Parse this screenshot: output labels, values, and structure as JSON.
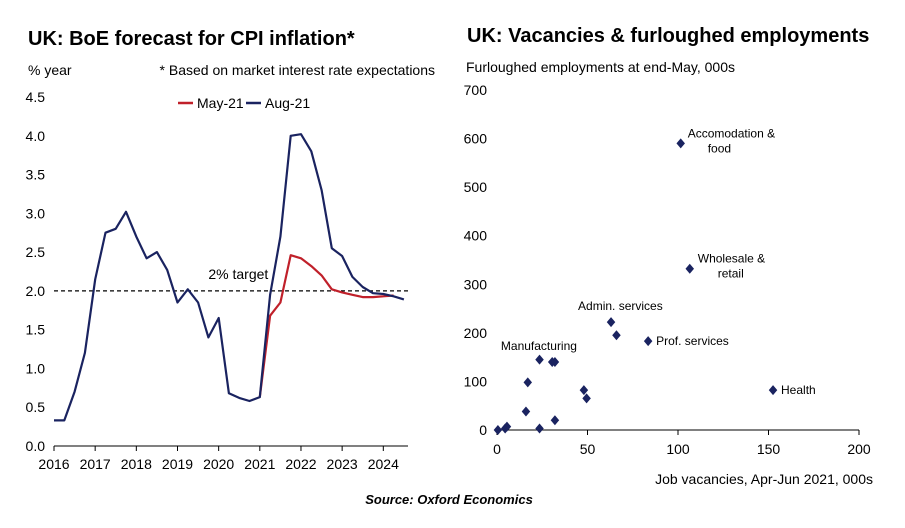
{
  "source": "Source: Oxford Economics",
  "chart_data": [
    {
      "type": "line",
      "title": "UK: BoE forecast for CPI inflation*",
      "ylabel": "% year",
      "note": "* Based on market interest rate expectations",
      "xlim": [
        2016,
        2024.6
      ],
      "ylim": [
        0,
        4.5
      ],
      "x_ticks": [
        "2016",
        "2017",
        "2018",
        "2019",
        "2020",
        "2021",
        "2022",
        "2023",
        "2024"
      ],
      "y_ticks": [
        "0.0",
        "0.5",
        "1.0",
        "1.5",
        "2.0",
        "2.5",
        "3.0",
        "3.5",
        "4.0",
        "4.5"
      ],
      "legend_position": "top",
      "target": {
        "label": "2% target",
        "value": 2.0
      },
      "series": [
        {
          "name": "May-21",
          "color": "#c0202a",
          "x": [
            2021.0,
            2021.25,
            2021.5,
            2021.75,
            2022.0,
            2022.25,
            2022.5,
            2022.75,
            2023.0,
            2023.25,
            2023.5,
            2023.75,
            2024.0,
            2024.25
          ],
          "y": [
            0.63,
            1.68,
            1.85,
            2.46,
            2.42,
            2.32,
            2.2,
            2.02,
            1.98,
            1.95,
            1.92,
            1.92,
            1.93,
            1.94
          ]
        },
        {
          "name": "Aug-21",
          "color": "#1a2360",
          "x": [
            2016.0,
            2016.25,
            2016.5,
            2016.75,
            2017.0,
            2017.25,
            2017.5,
            2017.75,
            2018.0,
            2018.25,
            2018.5,
            2018.75,
            2019.0,
            2019.25,
            2019.5,
            2019.75,
            2020.0,
            2020.25,
            2020.5,
            2020.75,
            2021.0,
            2021.25,
            2021.5,
            2021.75,
            2022.0,
            2022.25,
            2022.5,
            2022.75,
            2023.0,
            2023.25,
            2023.5,
            2023.75,
            2024.0,
            2024.25,
            2024.5
          ],
          "y": [
            0.33,
            0.33,
            0.7,
            1.2,
            2.15,
            2.75,
            2.8,
            3.02,
            2.7,
            2.42,
            2.5,
            2.27,
            1.85,
            2.02,
            1.85,
            1.4,
            1.65,
            0.68,
            0.62,
            0.58,
            0.63,
            1.95,
            2.7,
            4.0,
            4.02,
            3.8,
            3.3,
            2.55,
            2.45,
            2.18,
            2.05,
            1.97,
            1.96,
            1.93,
            1.89
          ]
        }
      ]
    },
    {
      "type": "scatter",
      "title": "UK: Vacancies & furloughed employments",
      "ylabel": "Furloughed employments at end-May, 000s",
      "xlabel": "Job vacancies, Apr-Jun 2021, 000s",
      "xlim": [
        0,
        200
      ],
      "ylim": [
        0,
        700
      ],
      "x_ticks": [
        "0",
        "50",
        "100",
        "150",
        "200"
      ],
      "y_ticks": [
        "0",
        "100",
        "200",
        "300",
        "400",
        "500",
        "600",
        "700"
      ],
      "marker": "diamond",
      "color": "#1a2360",
      "points": [
        {
          "x": 0.5,
          "y": 0,
          "label": ""
        },
        {
          "x": 4.5,
          "y": 3,
          "label": ""
        },
        {
          "x": 5.5,
          "y": 7,
          "label": ""
        },
        {
          "x": 16,
          "y": 38,
          "label": ""
        },
        {
          "x": 17,
          "y": 98,
          "label": ""
        },
        {
          "x": 23.5,
          "y": 145,
          "label": ""
        },
        {
          "x": 23.5,
          "y": 3,
          "label": ""
        },
        {
          "x": 30.5,
          "y": 140,
          "label": ""
        },
        {
          "x": 32,
          "y": 140,
          "label": "Manufacturing"
        },
        {
          "x": 32,
          "y": 20,
          "label": ""
        },
        {
          "x": 48,
          "y": 82,
          "label": ""
        },
        {
          "x": 49.5,
          "y": 65,
          "label": ""
        },
        {
          "x": 63,
          "y": 222,
          "label": "Admin. services"
        },
        {
          "x": 66,
          "y": 195,
          "label": ""
        },
        {
          "x": 83.5,
          "y": 183,
          "label": "Prof. services"
        },
        {
          "x": 101.5,
          "y": 590,
          "label": "Accomodation & food"
        },
        {
          "x": 106.5,
          "y": 332,
          "label": "Wholesale & retail"
        },
        {
          "x": 152.5,
          "y": 82,
          "label": "Health"
        }
      ]
    }
  ]
}
